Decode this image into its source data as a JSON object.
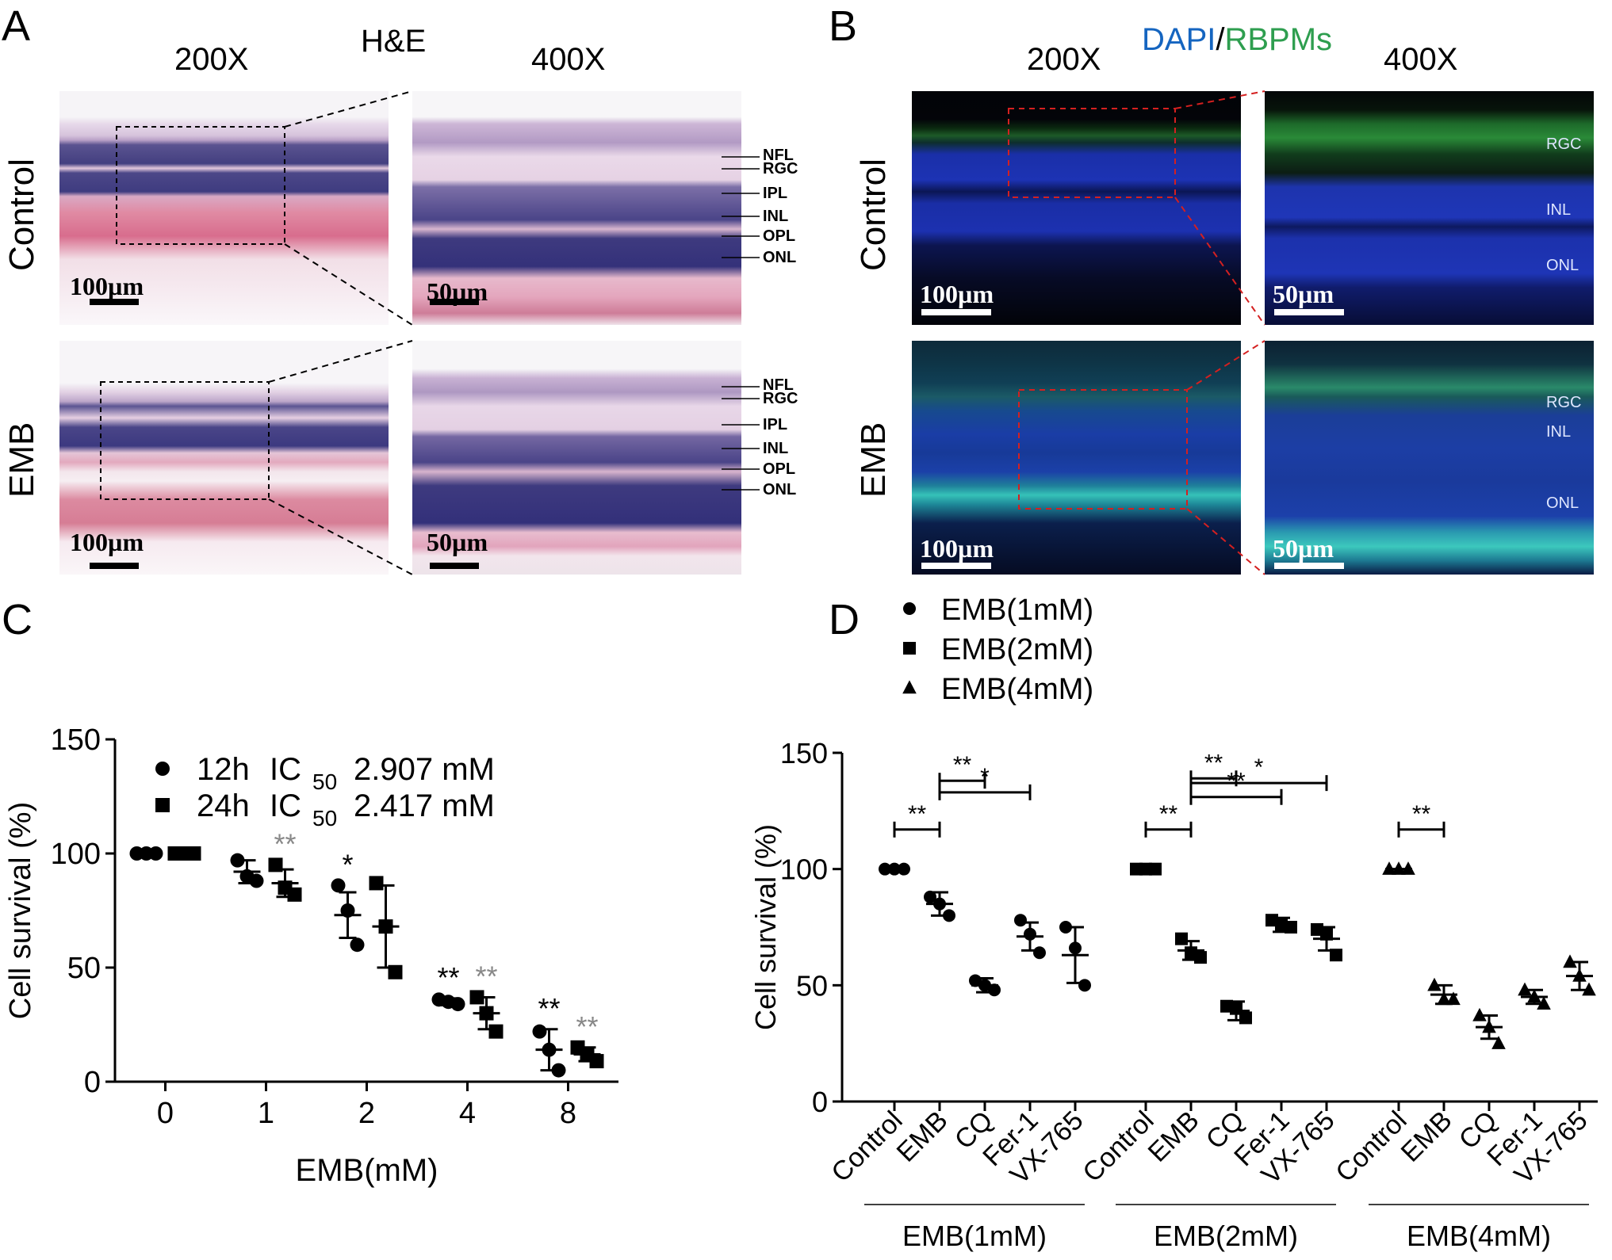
{
  "panelA": {
    "letter": "A",
    "stain": "H&E",
    "mag_low": "200X",
    "mag_high": "400X",
    "rows": [
      "Control",
      "EMB"
    ],
    "scale_low": "100µm",
    "scale_high": "50µm",
    "layers": [
      "NFL",
      "RGC",
      "IPL",
      "INL",
      "OPL",
      "ONL"
    ]
  },
  "panelB": {
    "letter": "B",
    "stain_dapi": "DAPI",
    "stain_sep": "/",
    "stain_rbpms": "RBPMs",
    "mag_low": "200X",
    "mag_high": "400X",
    "rows": [
      "Control",
      "EMB"
    ],
    "scale_low": "100µm",
    "scale_high": "50µm",
    "layers": [
      "RGC",
      "INL",
      "ONL"
    ],
    "colors": {
      "dapi": "#1565c0",
      "rbpms": "#2e9e4f"
    }
  },
  "panelC": {
    "letter": "C"
  },
  "panelD": {
    "letter": "D"
  },
  "chart_data": [
    {
      "type": "scatter",
      "panel": "C",
      "xlabel": "EMB(mM)",
      "ylabel": "Cell survival (%)",
      "ylim": [
        0,
        150
      ],
      "yticks": [
        0,
        50,
        100,
        150
      ],
      "categories": [
        "0",
        "1",
        "2",
        "4",
        "8"
      ],
      "series": [
        {
          "name": "12h",
          "ic50_prefix": "IC",
          "ic50_sub": "50",
          "ic50_value": "2.907 mM",
          "marker": "circle",
          "mean": [
            100,
            92,
            73,
            35,
            14
          ],
          "sd": [
            0,
            5,
            10,
            1.5,
            9
          ],
          "points": [
            [
              100,
              100,
              100
            ],
            [
              97,
              90,
              88
            ],
            [
              86,
              75,
              60
            ],
            [
              36,
              35,
              34
            ],
            [
              22,
              14,
              5
            ]
          ]
        },
        {
          "name": "24h",
          "ic50_prefix": "IC",
          "ic50_sub": "50",
          "ic50_value": "2.417 mM",
          "marker": "square",
          "mean": [
            100,
            87,
            68,
            30,
            12
          ],
          "sd": [
            0,
            6,
            18,
            7,
            3
          ],
          "points": [
            [
              100,
              100,
              100
            ],
            [
              95,
              85,
              82
            ],
            [
              87,
              68,
              48
            ],
            [
              37,
              30,
              22
            ],
            [
              15,
              12,
              9
            ]
          ]
        }
      ],
      "significance": [
        {
          "category": "1",
          "series": "24h",
          "label": "**",
          "color": "#888888"
        },
        {
          "category": "2",
          "series": "12h",
          "label": "*",
          "color": "#000000"
        },
        {
          "category": "4",
          "series": "12h",
          "label": "**",
          "color": "#000000"
        },
        {
          "category": "4",
          "series": "24h",
          "label": "**",
          "color": "#888888"
        },
        {
          "category": "8",
          "series": "12h",
          "label": "**",
          "color": "#000000"
        },
        {
          "category": "8",
          "series": "24h",
          "label": "**",
          "color": "#888888"
        }
      ]
    },
    {
      "type": "scatter",
      "panel": "D",
      "ylabel": "Cell survival (%)",
      "ylim": [
        0,
        150
      ],
      "yticks": [
        0,
        50,
        100,
        150
      ],
      "legend": [
        {
          "name": "EMB(1mM)",
          "marker": "circle"
        },
        {
          "name": "EMB(2mM)",
          "marker": "square"
        },
        {
          "name": "EMB(4mM)",
          "marker": "triangle"
        }
      ],
      "groups": [
        {
          "name": "EMB(1mM)",
          "marker": "circle",
          "categories": [
            "Control",
            "EMB",
            "CQ",
            "Fer-1",
            "VX-765"
          ],
          "mean": [
            100,
            85,
            50,
            71,
            63
          ],
          "sd": [
            0,
            5,
            3,
            6,
            12
          ],
          "points": [
            [
              100,
              100,
              100
            ],
            [
              88,
              85,
              80
            ],
            [
              52,
              50,
              48
            ],
            [
              78,
              72,
              64
            ],
            [
              75,
              66,
              50
            ]
          ]
        },
        {
          "name": "EMB(2mM)",
          "marker": "square",
          "categories": [
            "Control",
            "EMB",
            "CQ",
            "Fer-1",
            "VX-765"
          ],
          "mean": [
            100,
            65,
            39,
            76,
            70
          ],
          "sd": [
            0,
            4,
            4,
            3,
            5
          ],
          "points": [
            [
              100,
              100,
              100
            ],
            [
              70,
              64,
              62
            ],
            [
              41,
              40,
              36
            ],
            [
              78,
              76,
              75
            ],
            [
              74,
              72,
              63
            ]
          ]
        },
        {
          "name": "EMB(4mM)",
          "marker": "triangle",
          "categories": [
            "Control",
            "EMB",
            "CQ",
            "Fer-1",
            "VX-765"
          ],
          "mean": [
            100,
            46,
            32,
            45,
            54
          ],
          "sd": [
            0,
            4,
            5,
            3,
            6
          ],
          "points": [
            [
              100,
              100,
              100
            ],
            [
              50,
              44,
              44
            ],
            [
              37,
              32,
              25
            ],
            [
              48,
              45,
              42
            ],
            [
              60,
              54,
              48
            ]
          ]
        }
      ],
      "comparisons": [
        {
          "group": 0,
          "from": "Control",
          "to": "EMB",
          "label": "**"
        },
        {
          "group": 0,
          "from": "EMB",
          "to": "CQ",
          "label": "**"
        },
        {
          "group": 0,
          "from": "EMB",
          "to": "Fer-1",
          "label": "*"
        },
        {
          "group": 1,
          "from": "Control",
          "to": "EMB",
          "label": "**"
        },
        {
          "group": 1,
          "from": "EMB",
          "to": "CQ",
          "label": "**"
        },
        {
          "group": 1,
          "from": "EMB",
          "to": "Fer-1",
          "label": "**"
        },
        {
          "group": 1,
          "from": "EMB",
          "to": "VX-765",
          "label": "*"
        },
        {
          "group": 2,
          "from": "Control",
          "to": "EMB",
          "label": "**"
        }
      ]
    }
  ]
}
